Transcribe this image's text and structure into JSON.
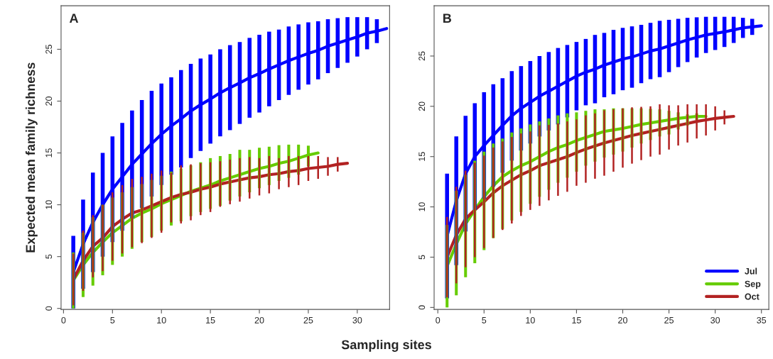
{
  "chart_data": [
    {
      "type": "line",
      "title": "A",
      "xlabel": "Sampling sites",
      "ylabel": "Expected mean family richness",
      "xlim": [
        -0.25,
        33.3
      ],
      "ylim": [
        -0.1,
        29.2
      ],
      "xticks": [
        0,
        5,
        10,
        15,
        20,
        25,
        30
      ],
      "yticks": [
        0,
        5,
        10,
        15,
        20,
        25
      ],
      "grid": false,
      "marker": "none",
      "series": [
        {
          "color": "#0000ff",
          "x": [
            1,
            2,
            3,
            4,
            5,
            6,
            7,
            8,
            9,
            10,
            11,
            12,
            13,
            14,
            15,
            16,
            17,
            18,
            19,
            20,
            21,
            22,
            23,
            24,
            25,
            26,
            27,
            28,
            29,
            30,
            31,
            32,
            33
          ],
          "values": [
            3.5,
            6.2,
            8.3,
            10.0,
            11.5,
            12.7,
            13.9,
            14.9,
            15.9,
            16.8,
            17.6,
            18.3,
            19.05,
            19.65,
            20.2,
            20.8,
            21.3,
            21.75,
            22.25,
            22.65,
            23.1,
            23.5,
            23.9,
            24.25,
            24.6,
            24.9,
            25.3,
            25.6,
            25.9,
            26.2,
            26.55,
            26.75,
            27.0
          ],
          "errors": [
            3.5,
            4.3,
            4.8,
            5.0,
            5.1,
            5.2,
            5.2,
            5.2,
            5.1,
            4.9,
            4.7,
            4.7,
            4.55,
            4.45,
            4.3,
            4.2,
            4.1,
            3.95,
            3.85,
            3.75,
            3.6,
            3.4,
            3.3,
            3.15,
            3.0,
            2.8,
            2.6,
            2.4,
            2.2,
            1.9,
            1.55,
            1.15,
            null
          ]
        },
        {
          "color": "#66cc00",
          "x": [
            1,
            2,
            3,
            4,
            5,
            6,
            7,
            8,
            9,
            10,
            11,
            12,
            13,
            14,
            15,
            16,
            17,
            18,
            19,
            20,
            21,
            22,
            23,
            24,
            25,
            26
          ],
          "values": [
            2.7,
            4.2,
            5.4,
            6.4,
            7.3,
            8.0,
            8.7,
            9.2,
            9.6,
            10.1,
            10.5,
            10.9,
            11.3,
            11.6,
            11.9,
            12.3,
            12.6,
            12.9,
            13.2,
            13.5,
            13.7,
            14.0,
            14.2,
            14.5,
            14.8,
            15.0
          ],
          "errors": [
            2.7,
            [
              1.1,
              7.3
            ],
            [
              2.2,
              8.8
            ],
            [
              3.2,
              10.0
            ],
            [
              4.2,
              10.7
            ],
            [
              5.0,
              11.2
            ],
            [
              5.75,
              11.7
            ],
            [
              6.4,
              12.0
            ],
            [
              6.9,
              12.4
            ],
            [
              7.5,
              12.8
            ],
            [
              8.0,
              13.2
            ],
            [
              8.4,
              13.5
            ],
            [
              8.9,
              13.8
            ],
            [
              9.3,
              14.1
            ],
            [
              9.6,
              14.5
            ],
            [
              9.9,
              14.7
            ],
            [
              10.4,
              14.9
            ],
            [
              10.8,
              15.3
            ],
            [
              11.2,
              15.3
            ],
            [
              11.6,
              15.5
            ],
            [
              11.9,
              15.6
            ],
            [
              12.3,
              15.75
            ],
            [
              12.6,
              15.8
            ],
            [
              12.9,
              15.8
            ],
            [
              13.7,
              15.7
            ],
            null
          ]
        },
        {
          "color": "#b22222",
          "x": [
            1,
            2,
            3,
            4,
            5,
            6,
            7,
            8,
            9,
            10,
            11,
            12,
            13,
            14,
            15,
            16,
            17,
            18,
            19,
            20,
            21,
            22,
            23,
            24,
            25,
            26,
            27,
            28,
            29
          ],
          "values": [
            2.8,
            4.6,
            6.0,
            6.8,
            7.9,
            8.6,
            9.2,
            9.5,
            9.9,
            10.3,
            10.7,
            11.0,
            11.2,
            11.5,
            11.7,
            12.0,
            12.2,
            12.4,
            12.6,
            12.7,
            12.9,
            13.0,
            13.2,
            13.3,
            13.5,
            13.6,
            13.7,
            13.9,
            14.0
          ],
          "errors": [
            2.5,
            2.9,
            3.0,
            3.2,
            3.3,
            3.3,
            3.3,
            3.2,
            3.1,
            3.0,
            2.4,
            2.8,
            2.7,
            2.5,
            2.4,
            2.2,
            2.15,
            2.1,
            2.0,
            1.8,
            1.8,
            1.5,
            1.5,
            1.4,
            1.2,
            1.1,
            0.9,
            0.7,
            null
          ]
        }
      ]
    },
    {
      "type": "line",
      "title": "B",
      "xlim": [
        -0.4,
        35.8
      ],
      "ylim": [
        -0.2,
        30.0
      ],
      "xticks": [
        0,
        5,
        10,
        15,
        20,
        25,
        30,
        35
      ],
      "yticks": [
        0,
        5,
        10,
        15,
        20,
        25
      ],
      "grid": false,
      "legend": "bottom right",
      "marker": "none",
      "series": [
        {
          "name": "Jul",
          "color": "#0000ff",
          "x": [
            1,
            2,
            3,
            4,
            5,
            6,
            7,
            8,
            9,
            10,
            11,
            12,
            13,
            14,
            15,
            16,
            17,
            18,
            19,
            20,
            21,
            22,
            23,
            24,
            25,
            26,
            27,
            28,
            29,
            30,
            31,
            32,
            33,
            34,
            35
          ],
          "values": [
            7.1,
            10.6,
            13.3,
            15.0,
            16.1,
            17.1,
            18.1,
            19.05,
            19.8,
            20.4,
            21.0,
            21.5,
            22.0,
            22.5,
            23.0,
            23.4,
            23.7,
            24.1,
            24.4,
            24.7,
            24.9,
            25.2,
            25.5,
            25.7,
            26.0,
            26.3,
            26.6,
            26.85,
            27.1,
            27.25,
            27.4,
            27.6,
            27.8,
            27.9,
            28.0
          ],
          "errors": [
            6.2,
            6.4,
            5.75,
            5.3,
            5.3,
            5.1,
            4.7,
            4.45,
            4.2,
            4.1,
            4.0,
            3.9,
            3.8,
            3.6,
            3.4,
            3.3,
            3.4,
            3.2,
            3.2,
            3.1,
            3.05,
            2.9,
            2.8,
            2.8,
            2.6,
            2.4,
            2.2,
            2.0,
            1.8,
            1.65,
            1.5,
            1.3,
            1.0,
            0.8,
            null
          ]
        },
        {
          "name": "Sep",
          "color": "#66cc00",
          "x": [
            1,
            2,
            3,
            4,
            5,
            6,
            7,
            8,
            9,
            10,
            11,
            12,
            13,
            14,
            15,
            16,
            17,
            18,
            19,
            20,
            21,
            22,
            23,
            24,
            25,
            26,
            27,
            28,
            29
          ],
          "values": [
            4.1,
            6.3,
            8.3,
            9.7,
            11.0,
            12.1,
            13.0,
            13.6,
            14.1,
            14.5,
            15.0,
            15.5,
            15.9,
            16.2,
            16.6,
            16.9,
            17.2,
            17.5,
            17.65,
            17.8,
            18.0,
            18.2,
            18.35,
            18.5,
            18.65,
            18.8,
            18.9,
            19.0,
            19.0
          ],
          "errors": [
            4.1,
            [
              1.2,
              11.6
            ],
            [
              3.0,
              13.2
            ],
            [
              4.4,
              14.6
            ],
            [
              5.7,
              15.5
            ],
            [
              6.9,
              16.3
            ],
            [
              7.8,
              16.8
            ],
            [
              8.65,
              17.4
            ],
            [
              9.5,
              17.8
            ],
            [
              10.3,
              18.2
            ],
            [
              11.0,
              18.5
            ],
            [
              11.7,
              18.8
            ],
            [
              12.4,
              19.1
            ],
            [
              12.9,
              19.3
            ],
            [
              13.5,
              19.4
            ],
            [
              14.1,
              19.55
            ],
            [
              14.5,
              19.7
            ],
            [
              14.9,
              19.7
            ],
            [
              15.2,
              19.8
            ],
            [
              15.5,
              19.8
            ],
            [
              15.9,
              19.8
            ],
            [
              16.3,
              19.8
            ],
            [
              16.65,
              19.75
            ],
            [
              17.0,
              19.7
            ],
            [
              17.2,
              19.55
            ],
            [
              17.7,
              19.4
            ],
            [
              18.1,
              19.2
            ],
            [
              18.65,
              19.3
            ],
            null
          ]
        },
        {
          "name": "Oct",
          "color": "#b22222",
          "x": [
            1,
            2,
            3,
            4,
            5,
            6,
            7,
            8,
            9,
            10,
            11,
            12,
            13,
            14,
            15,
            16,
            17,
            18,
            19,
            20,
            21,
            22,
            23,
            24,
            25,
            26,
            27,
            28,
            29,
            30,
            31,
            32
          ],
          "values": [
            5.0,
            7.2,
            8.8,
            9.7,
            10.5,
            11.4,
            12.1,
            12.65,
            13.2,
            13.6,
            14.1,
            14.4,
            14.7,
            15.0,
            15.4,
            15.75,
            16.05,
            16.35,
            16.6,
            16.85,
            17.1,
            17.3,
            17.5,
            17.7,
            17.9,
            18.1,
            18.3,
            18.5,
            18.65,
            18.8,
            18.9,
            19.0
          ],
          "errors": [
            4.0,
            4.8,
            4.8,
            4.7,
            4.6,
            4.5,
            4.4,
            4.3,
            4.1,
            3.9,
            4.0,
            3.75,
            3.6,
            3.5,
            3.3,
            3.35,
            3.25,
            3.25,
            3.1,
            2.95,
            2.8,
            2.65,
            2.5,
            2.5,
            2.2,
            2.0,
            1.9,
            1.7,
            1.55,
            1.2,
            0.7,
            null
          ]
        }
      ]
    }
  ]
}
